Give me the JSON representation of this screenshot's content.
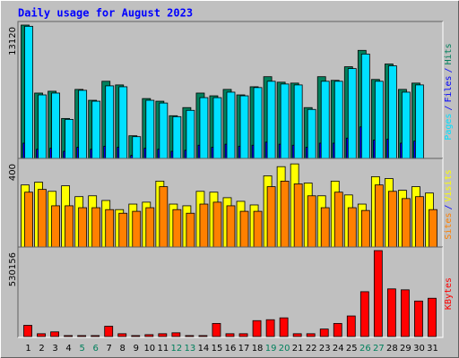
{
  "chart_data": [
    {
      "type": "bar",
      "title": "Daily usage for August 2023",
      "legend_separator": "/",
      "ylim": [
        0,
        13120
      ],
      "yticks": [
        13120
      ],
      "series": [
        {
          "name": "Hits",
          "color": "#00805c",
          "values": [
            13120,
            6430,
            6610,
            3930,
            6790,
            5720,
            7590,
            7230,
            2230,
            5890,
            5630,
            4200,
            5000,
            6430,
            6160,
            6790,
            6250,
            7050,
            8040,
            7500,
            7410,
            5000,
            8040,
            7680,
            9020,
            10630,
            7770,
            9290,
            6790,
            7410,
            null
          ]
        },
        {
          "name": "Files",
          "color": "#0000ff",
          "values": [
            1500,
            900,
            1000,
            700,
            1100,
            900,
            1200,
            1100,
            300,
            1000,
            900,
            700,
            800,
            1300,
            1100,
            1400,
            1200,
            1300,
            1600,
            1400,
            1300,
            1100,
            1500,
            1500,
            2000,
            3100,
            1800,
            1900,
            1500,
            1700,
            null
          ]
        },
        {
          "name": "Pages",
          "color": "#00e0ff",
          "values": [
            13000,
            6250,
            6430,
            3840,
            6700,
            5630,
            7140,
            7050,
            2140,
            5720,
            5450,
            4110,
            4730,
            5980,
            5980,
            6520,
            6160,
            6970,
            7590,
            7320,
            7230,
            4820,
            7590,
            7590,
            8840,
            10270,
            7590,
            9110,
            6520,
            7230,
            null
          ]
        }
      ]
    },
    {
      "type": "bar",
      "legend_separator": "/",
      "ylim": [
        0,
        400
      ],
      "yticks": [
        400
      ],
      "series": [
        {
          "name": "Visits",
          "color": "#ffff00",
          "values": [
            292,
            305,
            262,
            288,
            237,
            241,
            219,
            176,
            202,
            211,
            310,
            202,
            194,
            262,
            258,
            232,
            215,
            198,
            335,
            378,
            391,
            301,
            241,
            310,
            245,
            202,
            331,
            322,
            267,
            284,
            254
          ]
        },
        {
          "name": "Sites",
          "color": "#ff8000",
          "values": [
            258,
            271,
            194,
            194,
            185,
            185,
            176,
            159,
            168,
            185,
            284,
            176,
            159,
            202,
            211,
            194,
            168,
            168,
            284,
            310,
            297,
            241,
            185,
            258,
            185,
            172,
            292,
            262,
            228,
            237,
            176
          ]
        }
      ]
    },
    {
      "type": "bar",
      "ylim": [
        0,
        530156
      ],
      "yticks": [
        530156
      ],
      "categories": [
        "1",
        "2",
        "3",
        "4",
        "5",
        "6",
        "7",
        "8",
        "9",
        "10",
        "11",
        "12",
        "13",
        "14",
        "15",
        "16",
        "17",
        "18",
        "19",
        "20",
        "21",
        "22",
        "23",
        "24",
        "25",
        "26",
        "27",
        "28",
        "29",
        "30",
        "31"
      ],
      "category_colors": [
        "#000000",
        "#000000",
        "#000000",
        "#000000",
        "#00805c",
        "#00805c",
        "#000000",
        "#000000",
        "#000000",
        "#000000",
        "#000000",
        "#00805c",
        "#00805c",
        "#000000",
        "#000000",
        "#000000",
        "#000000",
        "#000000",
        "#00805c",
        "#00805c",
        "#000000",
        "#000000",
        "#000000",
        "#000000",
        "#000000",
        "#00805c",
        "#00805c",
        "#000000",
        "#000000",
        "#000000",
        "#000000"
      ],
      "series": [
        {
          "name": "KBytes",
          "color": "#ff0000",
          "values": [
            69100,
            17300,
            28800,
            5800,
            5800,
            5800,
            63400,
            17300,
            5800,
            11500,
            17300,
            23000,
            5800,
            5800,
            80700,
            17300,
            17300,
            98000,
            103700,
            115200,
            17300,
            17300,
            46100,
            80700,
            126800,
            276600,
            530156,
            293900,
            288100,
            219000,
            236200
          ]
        }
      ]
    }
  ]
}
